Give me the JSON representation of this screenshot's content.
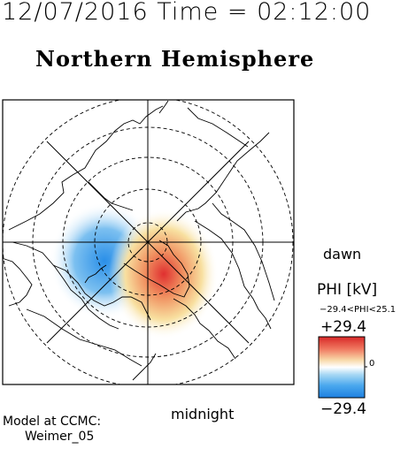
{
  "header": {
    "timestamp": "12/07/2016 Time = 02:12:00",
    "hemisphere": "Northern Hemisphere"
  },
  "map": {
    "labels": {
      "dawn": "dawn",
      "midnight": "midnight"
    },
    "projection": "polar",
    "grid": true
  },
  "colorbar": {
    "title": "PHI [kV]",
    "range_text": "−29.4<PHI<25.1",
    "max_label": "+29.4",
    "zero_label": "0",
    "min_label": "−29.4",
    "colors": {
      "positive": "#e83030",
      "mid": "#ffffff",
      "negative": "#2a8fe8"
    }
  },
  "footer": {
    "model_line1": "Model at CCMC:",
    "model_line2": "Weimer_05"
  }
}
